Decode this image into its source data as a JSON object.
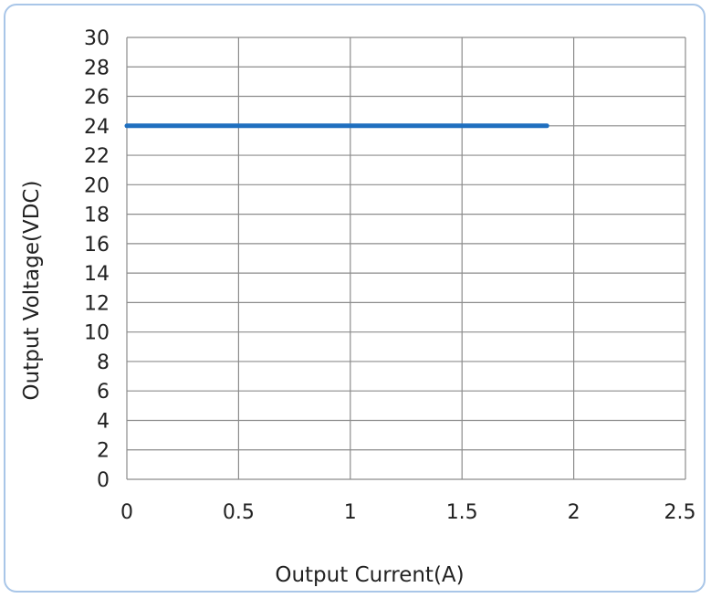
{
  "chart_data": {
    "type": "line",
    "title": "",
    "xlabel": "Output Current(A)",
    "ylabel": "Output Voltage(VDC)",
    "xlim": [
      0,
      2.5
    ],
    "ylim": [
      0,
      30
    ],
    "x_ticks": [
      "0",
      "0.5",
      "1",
      "1.5",
      "2",
      "2.5"
    ],
    "y_ticks": [
      "0",
      "2",
      "4",
      "6",
      "8",
      "10",
      "12",
      "14",
      "16",
      "18",
      "20",
      "22",
      "24",
      "26",
      "28",
      "30"
    ],
    "grid": true,
    "series": [
      {
        "x": [
          0,
          1.88
        ],
        "y": [
          24,
          24
        ],
        "color": "#1f6fbf"
      }
    ]
  },
  "colors": {
    "grid": "#8c8c8c",
    "frame": "#a9c6e8",
    "text": "#222222"
  }
}
